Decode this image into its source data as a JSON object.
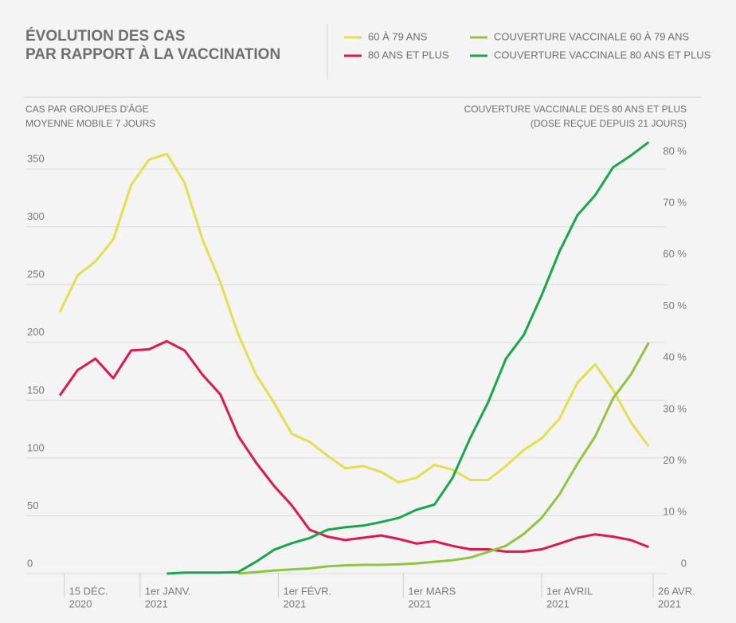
{
  "chart_data": {
    "type": "line",
    "title": [
      "ÉVOLUTION DES CAS",
      "PAR RAPPORT À LA VACCINATION"
    ],
    "y_label": [
      "CAS PAR GROUPES D'ÂGE",
      "MOYENNE MOBILE 7 JOURS"
    ],
    "y2_label": [
      "COUVERTURE VACCINALE DES 80 ANS ET PLUS",
      "(DOSE REÇUE DEPUIS 21 JOURS)"
    ],
    "x": [
      "2020-12-14",
      "2020-12-18",
      "2020-12-22",
      "2020-12-26",
      "2020-12-30",
      "2021-01-03",
      "2021-01-07",
      "2021-01-11",
      "2021-01-15",
      "2021-01-19",
      "2021-01-23",
      "2021-01-27",
      "2021-01-31",
      "2021-02-04",
      "2021-02-08",
      "2021-02-12",
      "2021-02-16",
      "2021-02-20",
      "2021-02-24",
      "2021-02-28",
      "2021-03-04",
      "2021-03-08",
      "2021-03-12",
      "2021-03-16",
      "2021-03-20",
      "2021-03-24",
      "2021-03-28",
      "2021-04-01",
      "2021-04-05",
      "2021-04-09",
      "2021-04-13",
      "2021-04-17",
      "2021-04-21",
      "2021-04-25"
    ],
    "xlim": [
      "2020-12-14",
      "2021-04-26"
    ],
    "xticks": [
      {
        "value": "2020-12-15",
        "label": "15 DÉC.",
        "sublabel": "2020"
      },
      {
        "value": "2021-01-01",
        "label": "1er JANV.",
        "sublabel": "2021"
      },
      {
        "value": "2021-02-01",
        "label": "1er FÉVR.",
        "sublabel": "2021"
      },
      {
        "value": "2021-03-01",
        "label": "1er MARS",
        "sublabel": "2021"
      },
      {
        "value": "2021-04-01",
        "label": "1er AVRIL",
        "sublabel": "2021"
      },
      {
        "value": "2021-04-26",
        "label": "26 AVR.",
        "sublabel": "2021"
      }
    ],
    "ylim": [
      0,
      379
    ],
    "yticks": [
      0,
      50,
      100,
      150,
      200,
      250,
      300,
      350
    ],
    "y2lim": [
      0,
      85
    ],
    "y2ticks": [
      0,
      {
        "value": 10,
        "label": "10 %"
      },
      {
        "value": 20,
        "label": "20 %"
      },
      {
        "value": 30,
        "label": "30 %"
      },
      {
        "value": 40,
        "label": "40 %"
      },
      {
        "value": 50,
        "label": "50 %"
      },
      {
        "value": 60,
        "label": "60 %"
      },
      {
        "value": 70,
        "label": "70 %"
      },
      {
        "value": 80,
        "label": "80 %"
      }
    ],
    "grid": true,
    "series": [
      {
        "name": "60 À 79 ANS",
        "color": "#e5df4e",
        "values": [
          226,
          258,
          270,
          289,
          336,
          358,
          363,
          338,
          289,
          252,
          207,
          172,
          148,
          121,
          114,
          102,
          91,
          93,
          88,
          79,
          83,
          94,
          90,
          81,
          81,
          93,
          107,
          117,
          134,
          165,
          181,
          159,
          131,
          110
        ]
      },
      {
        "name": "80 ANS ET PLUS",
        "color": "#e0174f",
        "values": [
          154,
          176,
          186,
          169,
          193,
          194,
          201,
          193,
          172,
          155,
          119,
          96,
          76,
          59,
          38,
          32,
          29,
          31,
          33,
          30,
          26,
          28,
          24,
          21,
          21,
          19,
          19,
          21,
          26,
          31,
          34,
          32,
          29,
          23
        ]
      },
      {
        "name": "COUVERTURE VACCINALE 60 À 79 ANS",
        "color": "#8dc63f",
        "axis": "y2",
        "values": [
          null,
          null,
          null,
          null,
          null,
          null,
          null,
          null,
          null,
          null,
          0,
          0.3,
          0.6,
          0.8,
          1.0,
          1.4,
          1.6,
          1.7,
          1.7,
          1.8,
          2.0,
          2.3,
          2.6,
          3.1,
          4.2,
          5.4,
          7.7,
          10.8,
          15.4,
          21.3,
          26.6,
          34,
          38.6,
          44.8
        ]
      },
      {
        "name": "COUVERTURE VACCINALE 80 ANS ET PLUS",
        "color": "#1aa64a",
        "axis": "y2",
        "values": [
          null,
          null,
          null,
          null,
          null,
          null,
          0,
          0.2,
          0.2,
          0.2,
          0.3,
          2.3,
          4.6,
          5.9,
          6.9,
          8.5,
          9.0,
          9.3,
          10.0,
          10.8,
          12.4,
          13.4,
          18.5,
          26.3,
          33.2,
          41.7,
          46.3,
          54,
          62.5,
          69.5,
          73.4,
          78.8,
          81.1,
          83.7
        ]
      }
    ]
  }
}
